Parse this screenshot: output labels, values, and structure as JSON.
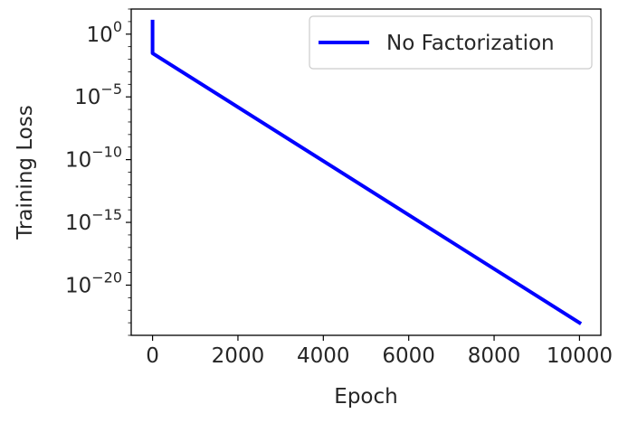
{
  "chart_data": {
    "type": "line",
    "xlabel": "Epoch",
    "ylabel": "Training Loss",
    "yscale": "log",
    "xlim": [
      -500,
      10500
    ],
    "ylim": [
      1e-24,
      100.0
    ],
    "grid": false,
    "legend_placement": "top-right",
    "x_ticks": [
      0,
      2000,
      4000,
      6000,
      8000,
      10000
    ],
    "x_tick_labels": [
      "0",
      "2000",
      "4000",
      "6000",
      "8000",
      "10000"
    ],
    "y_ticks": [
      {
        "value": 1.0,
        "base": "10",
        "exp": "0"
      },
      {
        "value": 1e-05,
        "base": "10",
        "exp": "−5"
      },
      {
        "value": 1e-10,
        "base": "10",
        "exp": "−10"
      },
      {
        "value": 1e-15,
        "base": "10",
        "exp": "−15"
      },
      {
        "value": 1e-20,
        "base": "10",
        "exp": "−20"
      }
    ],
    "series": [
      {
        "name": "No Factorization",
        "color": "#0000ff",
        "x": [
          0,
          0,
          10000
        ],
        "y": [
          10,
          0.03,
          1e-23
        ]
      }
    ]
  }
}
